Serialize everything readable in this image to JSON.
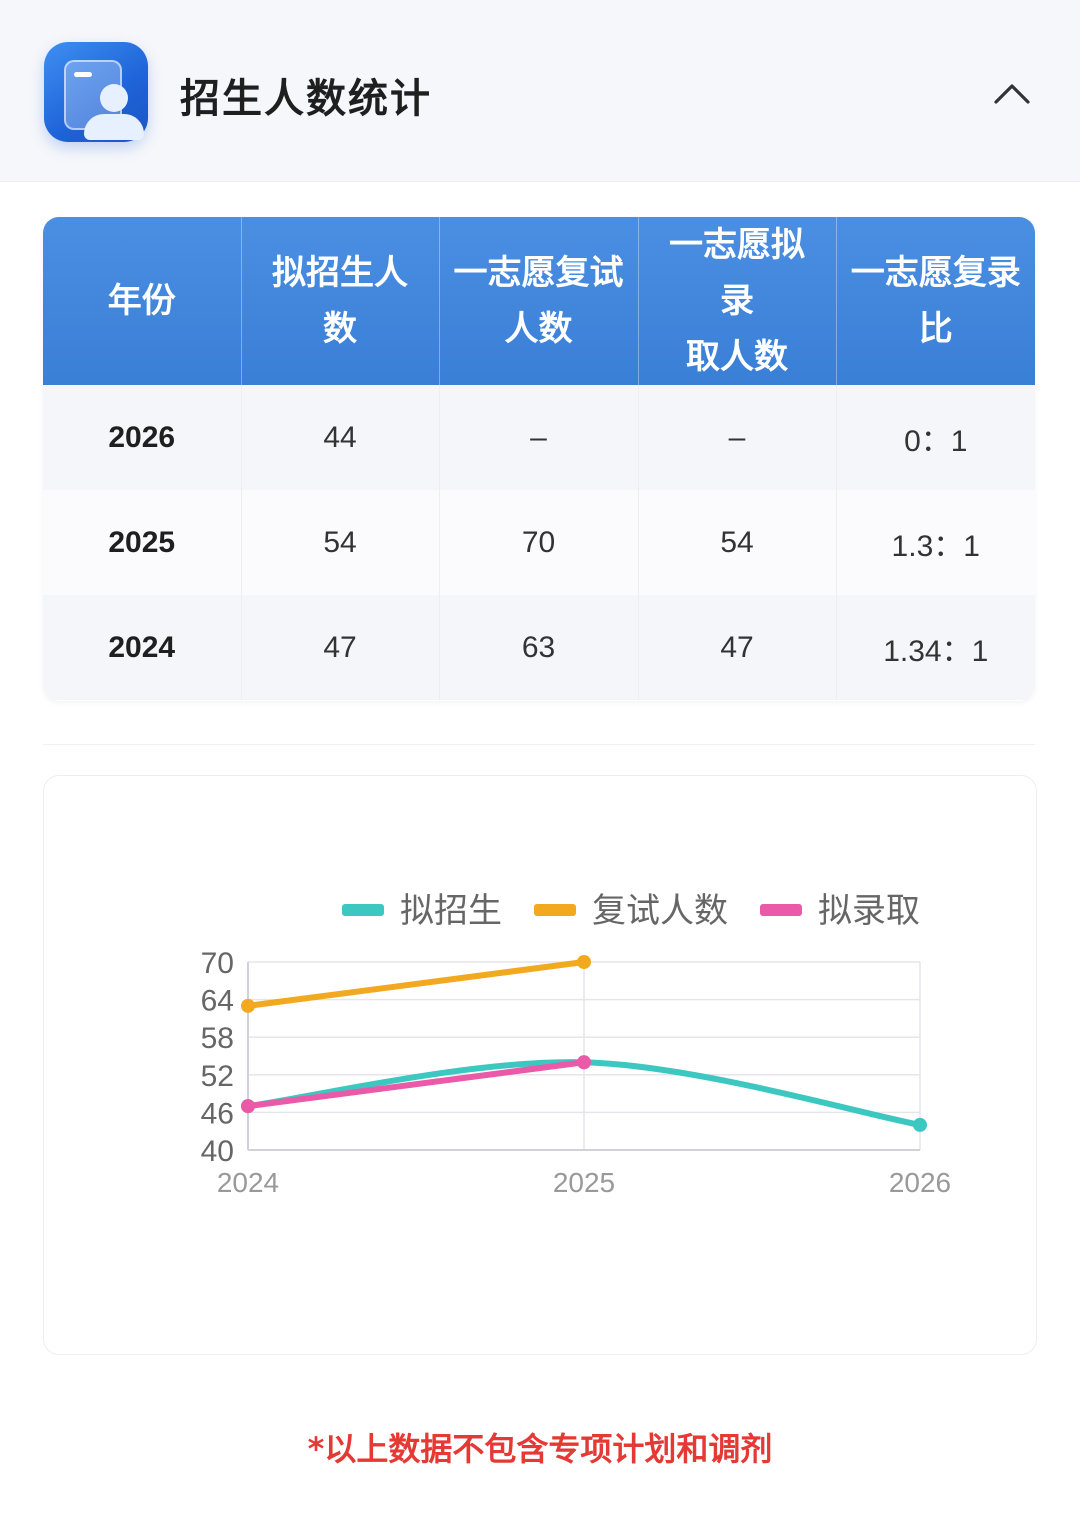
{
  "header": {
    "title": "招生人数统计",
    "icon": "student-card-icon",
    "collapse_icon": "chevron-up-icon"
  },
  "table": {
    "headers": [
      "年份",
      "拟招生人数",
      "一志愿复试人数",
      "一志愿拟录取人数",
      "一志愿复录比"
    ],
    "rows": [
      [
        "2026",
        "44",
        "–",
        "–",
        "0：1"
      ],
      [
        "2025",
        "54",
        "70",
        "54",
        "1.3：1"
      ],
      [
        "2024",
        "47",
        "63",
        "47",
        "1.34：1"
      ]
    ],
    "header_color": "#3f86dc"
  },
  "chart_data": {
    "type": "line",
    "x": [
      "2024",
      "2025",
      "2026"
    ],
    "ylim": [
      40,
      70
    ],
    "yticks": [
      "40",
      "46",
      "52",
      "58",
      "64",
      "70"
    ],
    "legend_position": "top",
    "grid": true,
    "series": [
      {
        "name": "拟招生",
        "color": "#3cc8c0",
        "values": [
          47,
          54,
          44
        ],
        "smooth": true
      },
      {
        "name": "复试人数",
        "color": "#f3a91f",
        "values": [
          63,
          70,
          null
        ],
        "smooth": false
      },
      {
        "name": "拟录取",
        "color": "#ea5aa9",
        "values": [
          47,
          54,
          null
        ],
        "smooth": false
      }
    ]
  },
  "footnote": "*以上数据不包含专项计划和调剂"
}
